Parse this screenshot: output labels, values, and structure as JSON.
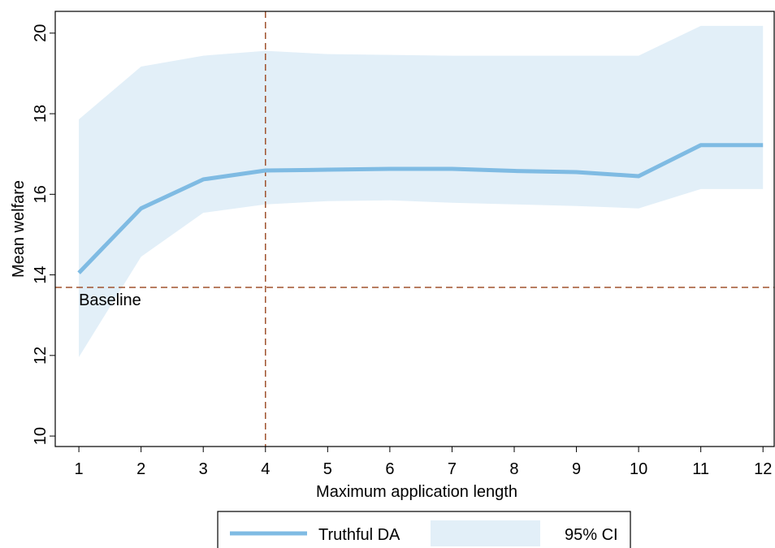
{
  "chart_data": {
    "type": "line",
    "x_label": "Maximum application length",
    "y_label": "Mean welfare",
    "x": [
      1,
      2,
      3,
      4,
      5,
      6,
      7,
      8,
      9,
      10,
      11,
      12
    ],
    "xlim": [
      0.62,
      12.18
    ],
    "xticks": [
      1,
      2,
      3,
      4,
      5,
      6,
      7,
      8,
      9,
      10,
      11,
      12
    ],
    "ylim": [
      9.74,
      20.54
    ],
    "yticks": [
      10,
      12,
      14,
      16,
      18,
      20
    ],
    "series": [
      {
        "name": "Truthful DA",
        "color": "#7fbbe3",
        "values": [
          14.05,
          15.65,
          16.37,
          16.59,
          16.61,
          16.63,
          16.63,
          16.58,
          16.55,
          16.45,
          17.22,
          17.22
        ]
      }
    ],
    "band": {
      "name": "95% CI",
      "color": "#e2eff8",
      "upper": [
        17.86,
        19.17,
        19.44,
        19.56,
        19.48,
        19.46,
        19.44,
        19.44,
        19.44,
        19.44,
        20.18,
        20.18
      ],
      "lower": [
        11.96,
        14.45,
        15.54,
        15.75,
        15.83,
        15.85,
        15.79,
        15.75,
        15.71,
        15.65,
        16.13,
        16.13
      ]
    },
    "hline": {
      "value": 13.69,
      "label": "Baseline",
      "color": "#a0522d"
    },
    "vline": {
      "value": 4,
      "color": "#a0522d"
    }
  }
}
